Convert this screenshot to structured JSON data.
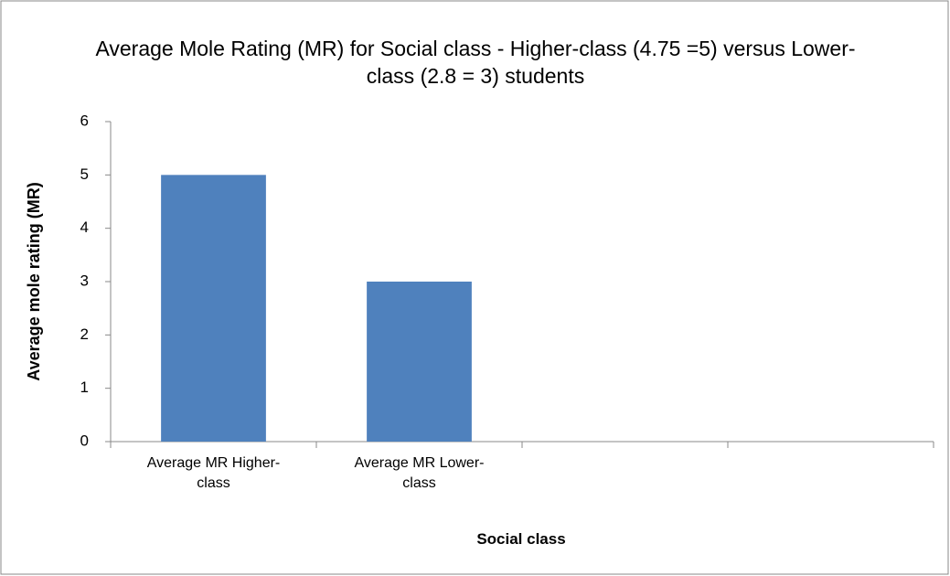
{
  "chart_data": {
    "type": "bar",
    "title": "Average Mole Rating (MR) for Social class - Higher-class (4.75 =5) versus Lower-class (2.8 = 3) students",
    "x_label": "Social class",
    "y_label": "Average mole rating (MR)",
    "categories": [
      "Average MR Higher-class",
      "Average MR Lower-class",
      null,
      null
    ],
    "values": [
      5,
      3,
      null,
      null
    ],
    "color": "#4f81bd",
    "ylim": [
      0,
      6
    ],
    "yticks": [
      0,
      1,
      2,
      3,
      4,
      5,
      6
    ],
    "grid": false
  }
}
